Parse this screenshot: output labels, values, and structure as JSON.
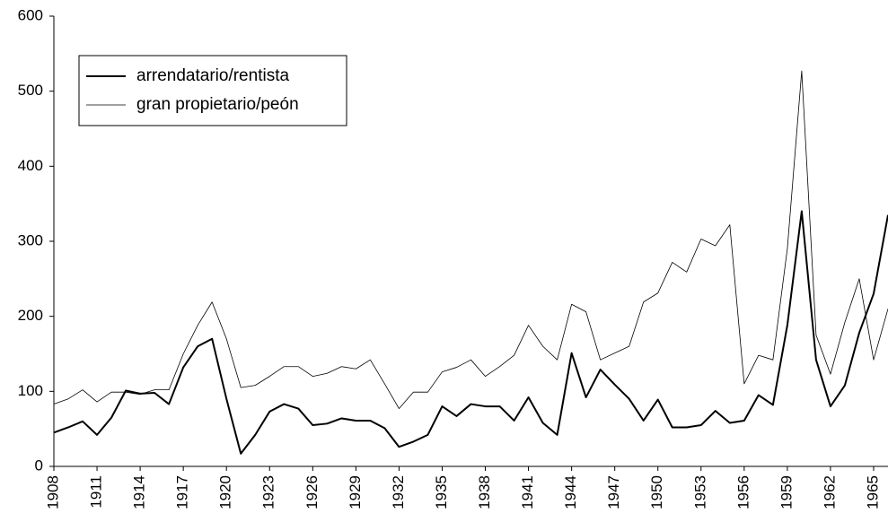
{
  "chart_data": {
    "type": "line",
    "x": [
      1908,
      1909,
      1910,
      1911,
      1912,
      1913,
      1914,
      1915,
      1916,
      1917,
      1918,
      1919,
      1920,
      1921,
      1922,
      1923,
      1924,
      1925,
      1926,
      1927,
      1928,
      1929,
      1930,
      1931,
      1932,
      1933,
      1934,
      1935,
      1936,
      1937,
      1938,
      1939,
      1940,
      1941,
      1942,
      1943,
      1944,
      1945,
      1946,
      1947,
      1948,
      1949,
      1950,
      1951,
      1952,
      1953,
      1954,
      1955,
      1956,
      1957,
      1958,
      1959,
      1960,
      1961,
      1962,
      1963,
      1964,
      1965,
      1966
    ],
    "series": [
      {
        "name": "arrendatario/rentista",
        "color": "#000000",
        "width": 2,
        "values": [
          45,
          52,
          60,
          42,
          65,
          101,
          97,
          98,
          83,
          132,
          160,
          170,
          90,
          17,
          42,
          73,
          83,
          77,
          55,
          57,
          64,
          61,
          61,
          51,
          26,
          33,
          42,
          80,
          67,
          83,
          80,
          80,
          61,
          92,
          58,
          42,
          151,
          92,
          129,
          109,
          90,
          61,
          89,
          52,
          52,
          55,
          74,
          58,
          61,
          95,
          82,
          188,
          340,
          142,
          80,
          108,
          178,
          230,
          335
        ]
      },
      {
        "name": "gran propietario/peón",
        "color": "#000000",
        "width": 0.8,
        "values": [
          83,
          90,
          102,
          86,
          99,
          99,
          96,
          102,
          102,
          150,
          188,
          219,
          170,
          105,
          108,
          120,
          133,
          133,
          120,
          124,
          133,
          130,
          142,
          110,
          77,
          99,
          99,
          126,
          132,
          142,
          120,
          133,
          148,
          188,
          160,
          142,
          216,
          206,
          142,
          151,
          160,
          219,
          231,
          272,
          259,
          303,
          294,
          322,
          110,
          148,
          142,
          290,
          527,
          175,
          123,
          192,
          250,
          142,
          210
        ]
      }
    ],
    "xlim": [
      1908,
      1966
    ],
    "xticks": [
      1908,
      1911,
      1914,
      1917,
      1920,
      1923,
      1926,
      1929,
      1932,
      1935,
      1938,
      1941,
      1944,
      1947,
      1950,
      1953,
      1956,
      1959,
      1962,
      1965
    ],
    "ylim": [
      0,
      600
    ],
    "yticks": [
      0,
      100,
      200,
      300,
      400,
      500,
      600
    ],
    "grid": false,
    "legend": "top-left"
  }
}
